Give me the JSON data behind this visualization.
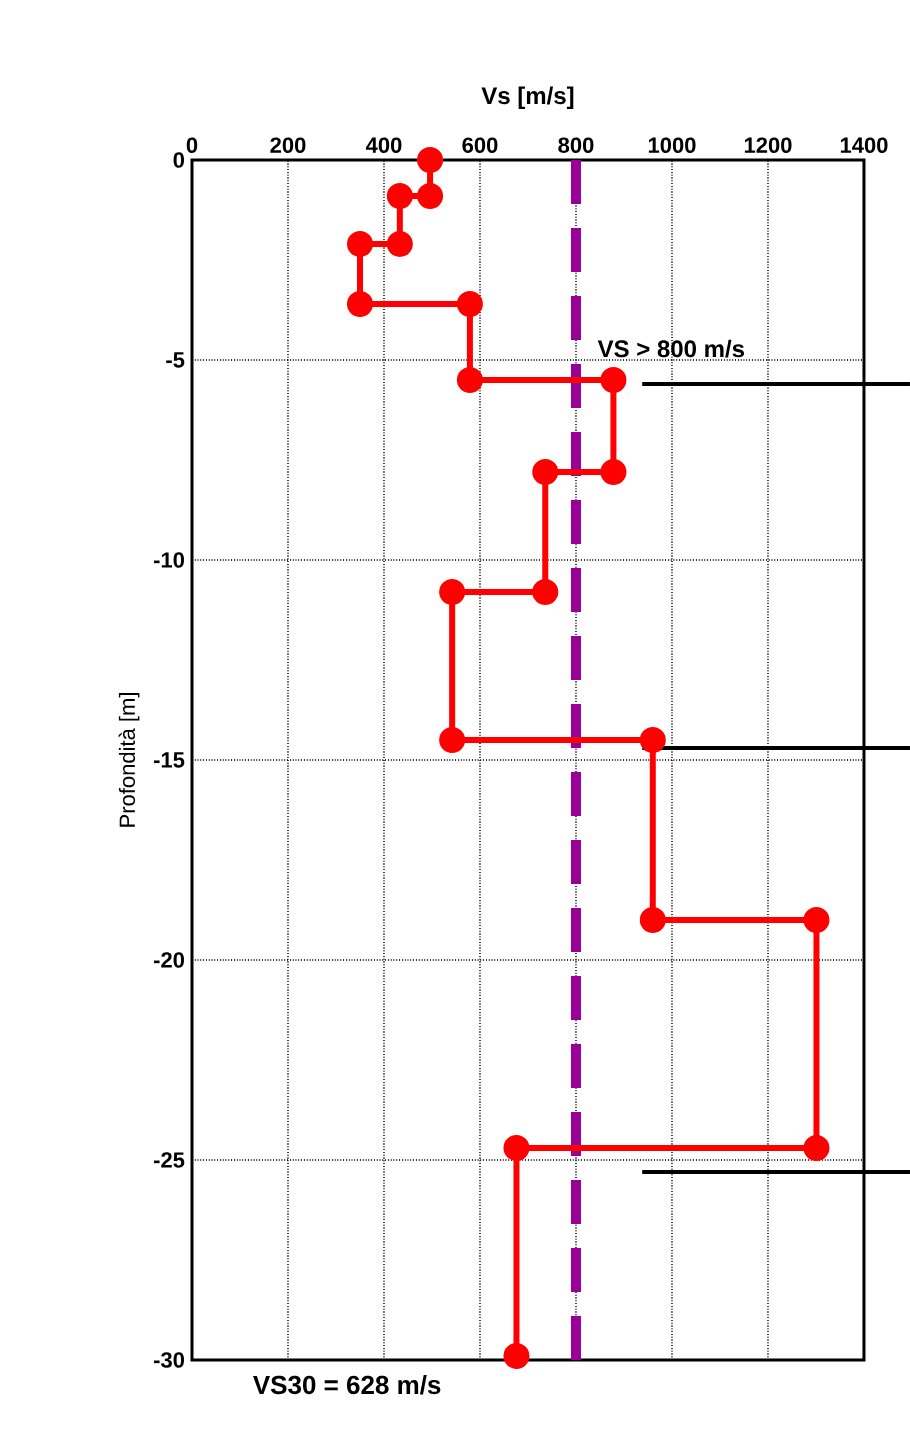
{
  "chart_data": {
    "type": "line",
    "xlabel": "Vs [m/s]",
    "ylabel": "Profondità  [m]",
    "xlim": [
      0,
      1400
    ],
    "xticks": [
      0,
      200,
      400,
      600,
      800,
      1000,
      1200,
      1400
    ],
    "ylim": [
      -30,
      0
    ],
    "yticks": [
      -30,
      -25,
      -20,
      -15,
      -10,
      -5,
      0
    ],
    "grid": true,
    "marker": "circle",
    "line_style": "solid",
    "series": [
      {
        "color": "#ff0000",
        "x": [
          496,
          496,
          433,
          433,
          350,
          350,
          579,
          579,
          878,
          878,
          736,
          736,
          542,
          542,
          960,
          960,
          1301,
          1301,
          676,
          676
        ],
        "values": [
          0,
          -0.9,
          -0.9,
          -2.1,
          -2.1,
          -3.6,
          -3.6,
          -5.5,
          -5.5,
          -7.8,
          -7.8,
          -10.8,
          -10.8,
          -14.5,
          -14.5,
          -19.0,
          -19.0,
          -24.7,
          -24.7,
          -29.9
        ]
      }
    ],
    "ref_lines": [
      {
        "axis": "x",
        "value": 800,
        "color": "#990099",
        "line_style": "dashed"
      },
      {
        "axis": "y",
        "value": -5.6,
        "label": "VS > 800 m/s",
        "color": "#000000",
        "line_style": "solid"
      },
      {
        "axis": "y",
        "value": -14.7,
        "color": "#000000",
        "line_style": "solid"
      },
      {
        "axis": "y",
        "value": -25.3,
        "color": "#000000",
        "line_style": "solid"
      }
    ],
    "annotations": [
      "VS30 =  628 m/s"
    ]
  }
}
